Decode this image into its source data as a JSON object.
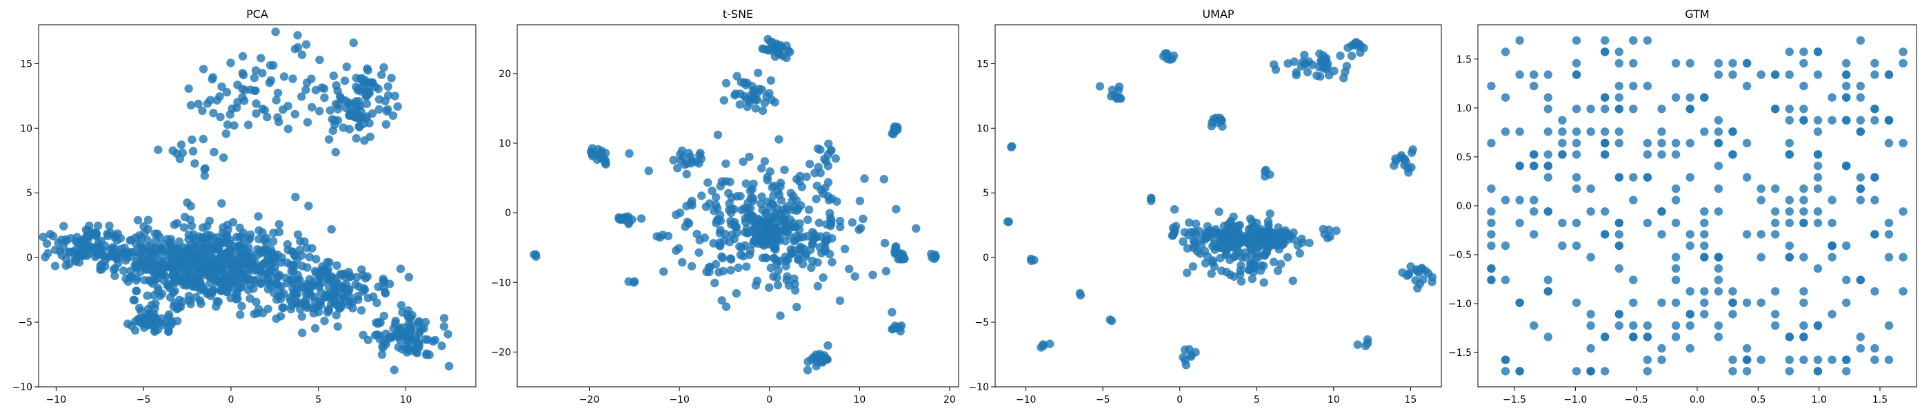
{
  "chart_data": [
    {
      "type": "scatter",
      "title": "PCA",
      "xlabel": "",
      "ylabel": "",
      "xlim": [
        -11,
        14
      ],
      "ylim": [
        -10,
        18
      ],
      "xticks": [
        -10,
        -5,
        0,
        5,
        10
      ],
      "yticks": [
        -10,
        -5,
        0,
        5,
        10,
        15
      ],
      "grid": false,
      "color": "#1f77b4",
      "clusters": [
        {
          "cx": -1.5,
          "cy": -0.5,
          "sx": 2.5,
          "sy": 1.5,
          "n": 650,
          "seed": 11
        },
        {
          "cx": -8.0,
          "cy": 0.8,
          "sx": 1.2,
          "sy": 0.7,
          "n": 120,
          "seed": 12
        },
        {
          "cx": 5.0,
          "cy": -2.5,
          "sx": 2.0,
          "sy": 1.2,
          "n": 180,
          "seed": 13
        },
        {
          "cx": 10.0,
          "cy": -6.0,
          "sx": 1.0,
          "sy": 1.0,
          "n": 90,
          "seed": 14
        },
        {
          "cx": -4.5,
          "cy": -5.0,
          "sx": 0.7,
          "sy": 0.5,
          "n": 50,
          "seed": 15
        },
        {
          "cx": 7.5,
          "cy": 12.0,
          "sx": 1.0,
          "sy": 1.5,
          "n": 90,
          "seed": 16
        },
        {
          "cx": 0.0,
          "cy": 12.5,
          "sx": 1.2,
          "sy": 1.5,
          "n": 40,
          "seed": 17
        },
        {
          "cx": 3.5,
          "cy": 13.0,
          "sx": 2.0,
          "sy": 2.5,
          "n": 40,
          "seed": 18
        },
        {
          "cx": -2.0,
          "cy": 8.0,
          "sx": 1.0,
          "sy": 0.8,
          "n": 15,
          "seed": 19
        }
      ]
    },
    {
      "type": "scatter",
      "title": "t-SNE",
      "xlabel": "",
      "ylabel": "",
      "xlim": [
        -28,
        21
      ],
      "ylim": [
        -25,
        27
      ],
      "xticks": [
        -20,
        -10,
        0,
        10,
        20
      ],
      "yticks": [
        -20,
        -10,
        0,
        10,
        20
      ],
      "grid": false,
      "color": "#1f77b4",
      "clusters": [
        {
          "cx": 0.0,
          "cy": -2.0,
          "sx": 5.5,
          "sy": 5.0,
          "n": 320,
          "seed": 21
        },
        {
          "cx": -0.5,
          "cy": -2.5,
          "sx": 1.2,
          "sy": 1.2,
          "n": 80,
          "seed": 22
        },
        {
          "cx": 0.5,
          "cy": 23.5,
          "sx": 0.8,
          "sy": 0.7,
          "n": 30,
          "seed": 23
        },
        {
          "cx": -2.0,
          "cy": 17.0,
          "sx": 1.5,
          "sy": 1.5,
          "n": 35,
          "seed": 24
        },
        {
          "cx": -19.0,
          "cy": 8.0,
          "sx": 0.6,
          "sy": 0.7,
          "n": 20,
          "seed": 25
        },
        {
          "cx": -16.0,
          "cy": -1.0,
          "sx": 0.8,
          "sy": 0.3,
          "n": 15,
          "seed": 26
        },
        {
          "cx": -9.0,
          "cy": 7.5,
          "sx": 1.0,
          "sy": 0.8,
          "n": 15,
          "seed": 27
        },
        {
          "cx": 14.0,
          "cy": 11.8,
          "sx": 0.4,
          "sy": 0.3,
          "n": 10,
          "seed": 28
        },
        {
          "cx": 14.0,
          "cy": -16.5,
          "sx": 0.4,
          "sy": 0.3,
          "n": 8,
          "seed": 29
        },
        {
          "cx": 5.5,
          "cy": -21.0,
          "sx": 0.7,
          "sy": 0.8,
          "n": 20,
          "seed": 30
        },
        {
          "cx": 14.5,
          "cy": -6.5,
          "sx": 0.6,
          "sy": 0.8,
          "n": 15,
          "seed": 31
        },
        {
          "cx": 6.5,
          "cy": 8.0,
          "sx": 0.8,
          "sy": 0.8,
          "n": 10,
          "seed": 32
        },
        {
          "cx": 18.0,
          "cy": -6.2,
          "sx": 0.6,
          "sy": 0.3,
          "n": 6,
          "seed": 33
        },
        {
          "cx": -26.0,
          "cy": -6.0,
          "sx": 0.2,
          "sy": 0.2,
          "n": 3,
          "seed": 34
        },
        {
          "cx": -15.0,
          "cy": -10.0,
          "sx": 0.2,
          "sy": 0.2,
          "n": 3,
          "seed": 35
        }
      ]
    },
    {
      "type": "scatter",
      "title": "UMAP",
      "xlabel": "",
      "ylabel": "",
      "xlim": [
        -12,
        17
      ],
      "ylim": [
        -10,
        18
      ],
      "xticks": [
        -10,
        -5,
        0,
        5,
        10,
        15
      ],
      "yticks": [
        -10,
        -5,
        0,
        5,
        10,
        15
      ],
      "grid": false,
      "color": "#1f77b4",
      "clusters": [
        {
          "cx": 3.5,
          "cy": 1.5,
          "sx": 1.5,
          "sy": 0.8,
          "n": 160,
          "seed": 41
        },
        {
          "cx": 6.0,
          "cy": 1.5,
          "sx": 0.8,
          "sy": 0.4,
          "n": 60,
          "seed": 42
        },
        {
          "cx": 4.0,
          "cy": -0.8,
          "sx": 1.5,
          "sy": 0.8,
          "n": 40,
          "seed": 43
        },
        {
          "cx": 9.0,
          "cy": 14.8,
          "sx": 1.5,
          "sy": 0.6,
          "n": 35,
          "seed": 44
        },
        {
          "cx": 11.3,
          "cy": 16.3,
          "sx": 0.3,
          "sy": 0.2,
          "n": 10,
          "seed": 45
        },
        {
          "cx": -0.8,
          "cy": 15.5,
          "sx": 0.2,
          "sy": 0.3,
          "n": 8,
          "seed": 46
        },
        {
          "cx": -4.2,
          "cy": 12.7,
          "sx": 0.4,
          "sy": 0.3,
          "n": 10,
          "seed": 47
        },
        {
          "cx": 2.6,
          "cy": 10.5,
          "sx": 0.4,
          "sy": 0.2,
          "n": 10,
          "seed": 48
        },
        {
          "cx": 14.5,
          "cy": 7.2,
          "sx": 0.4,
          "sy": 0.5,
          "n": 12,
          "seed": 49
        },
        {
          "cx": 15.3,
          "cy": -1.5,
          "sx": 0.5,
          "sy": 0.5,
          "n": 18,
          "seed": 50
        },
        {
          "cx": 0.5,
          "cy": -8.0,
          "sx": 0.3,
          "sy": 0.6,
          "n": 8,
          "seed": 51
        },
        {
          "cx": -8.8,
          "cy": -6.8,
          "sx": 0.2,
          "sy": 0.2,
          "n": 4,
          "seed": 52
        },
        {
          "cx": 12.0,
          "cy": -6.8,
          "sx": 0.2,
          "sy": 0.2,
          "n": 4,
          "seed": 53
        },
        {
          "cx": -0.2,
          "cy": 2.0,
          "sx": 0.3,
          "sy": 0.2,
          "n": 6,
          "seed": 54
        },
        {
          "cx": -11.0,
          "cy": 8.6,
          "sx": 0.1,
          "sy": 0.1,
          "n": 2,
          "seed": 55
        },
        {
          "cx": -11.0,
          "cy": 2.8,
          "sx": 0.1,
          "sy": 0.1,
          "n": 2,
          "seed": 56
        },
        {
          "cx": -9.5,
          "cy": 0.0,
          "sx": 0.15,
          "sy": 0.15,
          "n": 3,
          "seed": 57
        },
        {
          "cx": -1.8,
          "cy": 4.4,
          "sx": 0.1,
          "sy": 0.2,
          "n": 3,
          "seed": 58
        },
        {
          "cx": 5.8,
          "cy": 6.5,
          "sx": 0.2,
          "sy": 0.3,
          "n": 4,
          "seed": 59
        },
        {
          "cx": -6.5,
          "cy": -2.8,
          "sx": 0.1,
          "sy": 0.1,
          "n": 2,
          "seed": 60
        },
        {
          "cx": -4.5,
          "cy": -4.8,
          "sx": 0.1,
          "sy": 0.1,
          "n": 2,
          "seed": 61
        },
        {
          "cx": 9.5,
          "cy": 2.0,
          "sx": 0.4,
          "sy": 0.3,
          "n": 6,
          "seed": 62
        },
        {
          "cx": 15.0,
          "cy": 8.2,
          "sx": 0.1,
          "sy": 0.1,
          "n": 2,
          "seed": 63
        }
      ]
    },
    {
      "type": "scatter",
      "title": "GTM",
      "xlabel": "",
      "ylabel": "",
      "xlim": [
        -1.8,
        1.8
      ],
      "ylim": [
        -1.85,
        1.85
      ],
      "xticks": [
        -1.5,
        -1.0,
        -0.5,
        0.0,
        0.5,
        1.0,
        1.5
      ],
      "yticks": [
        -1.5,
        -1.0,
        -0.5,
        0.0,
        0.5,
        1.0,
        1.5
      ],
      "grid": false,
      "color": "#1f77b4",
      "lattice": {
        "min": -1.69,
        "max": 1.69,
        "steps": 30,
        "n": 380,
        "seed": 71
      }
    }
  ]
}
